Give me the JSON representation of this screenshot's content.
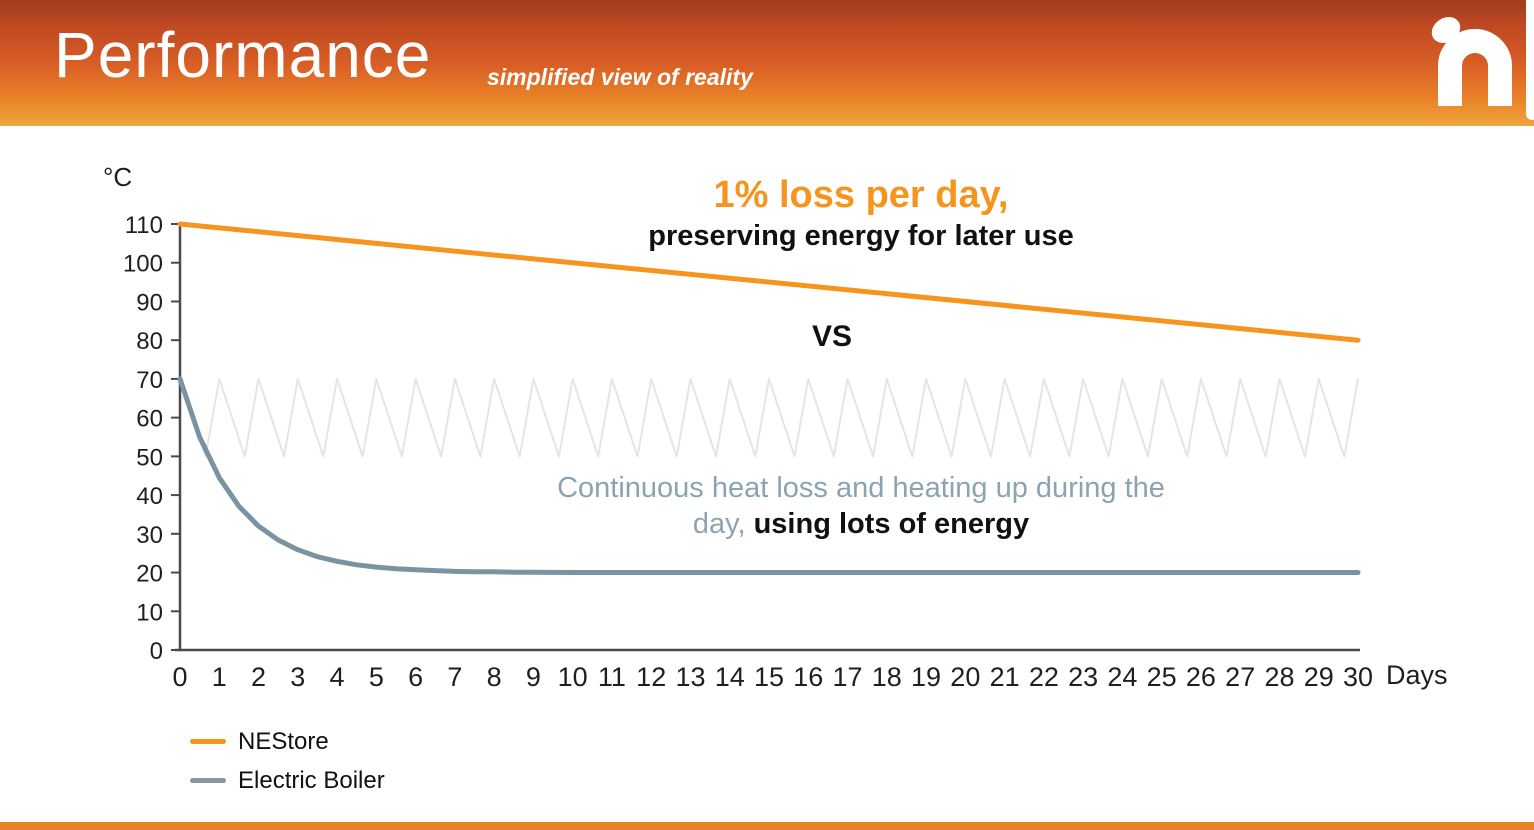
{
  "header": {
    "title": "Performance",
    "subtitle": "simplified view of reality",
    "logo": "nestore-n-logo"
  },
  "colors": {
    "accent_orange": "#F7941D",
    "boiler_gray_blue": "#7A93A2",
    "cycling_light_gray": "#E3E5E9",
    "legend_gray": "#8C969C",
    "axis": "#4A4A4A",
    "annotation_gray_blue": "#8CA3B2",
    "header_gradient_top": "#A33C1F",
    "header_gradient_bottom": "#F0A43E",
    "bottom_bar": "#E98125"
  },
  "chart_data": {
    "type": "line",
    "ylabel": "°C",
    "xlabel": "Days",
    "xlim": [
      0,
      30
    ],
    "ylim": [
      0,
      110
    ],
    "grid": false,
    "legend_position": "bottom-left",
    "y_ticks": [
      0,
      10,
      20,
      30,
      40,
      50,
      60,
      70,
      80,
      90,
      100,
      110
    ],
    "x_ticks": [
      0,
      1,
      2,
      3,
      4,
      5,
      6,
      7,
      8,
      9,
      10,
      11,
      12,
      13,
      14,
      15,
      16,
      17,
      18,
      19,
      20,
      21,
      22,
      23,
      24,
      25,
      26,
      27,
      28,
      29,
      30
    ],
    "series": [
      {
        "name": "Electric Boiler daily cycling",
        "color": "#E3E5E9",
        "width": 2,
        "sawtooth": {
          "max": 70,
          "min": 50,
          "cycles": 30,
          "fall_fraction": 0.65
        }
      },
      {
        "name": "Electric Boiler",
        "color": "#7A93A2",
        "width": 5,
        "points": [
          [
            0,
            70
          ],
          [
            0.5,
            55.0
          ],
          [
            1,
            44.5
          ],
          [
            1.5,
            37.1
          ],
          [
            2,
            32.0
          ],
          [
            2.5,
            28.4
          ],
          [
            3,
            25.9
          ],
          [
            3.5,
            24.1
          ],
          [
            4,
            22.9
          ],
          [
            4.5,
            22.0
          ],
          [
            5,
            21.4
          ],
          [
            5.5,
            21.0
          ],
          [
            6,
            20.7
          ],
          [
            6.5,
            20.5
          ],
          [
            7,
            20.3
          ],
          [
            7.5,
            20.2
          ],
          [
            8,
            20.2
          ],
          [
            8.5,
            20.1
          ],
          [
            9,
            20.1
          ],
          [
            10,
            20
          ],
          [
            12,
            20
          ],
          [
            15,
            20
          ],
          [
            20,
            20
          ],
          [
            25,
            20
          ],
          [
            30,
            20
          ]
        ]
      },
      {
        "name": "NEStore",
        "color": "#F7941D",
        "width": 5,
        "points": [
          [
            0,
            110
          ],
          [
            30,
            80
          ]
        ]
      }
    ]
  },
  "annotations": {
    "nestore_line1": "1% loss per day,",
    "nestore_line2": "preserving energy for later use",
    "vs": "VS",
    "boiler_line1": "Continuous heat loss and heating up during the",
    "boiler_line2_gray": "day,",
    "boiler_line2_bold": " using lots of energy"
  },
  "legend": {
    "items": [
      {
        "label": "NEStore",
        "color": "#F7941D"
      },
      {
        "label": "Electric Boiler",
        "color": "#8C969C"
      }
    ]
  }
}
